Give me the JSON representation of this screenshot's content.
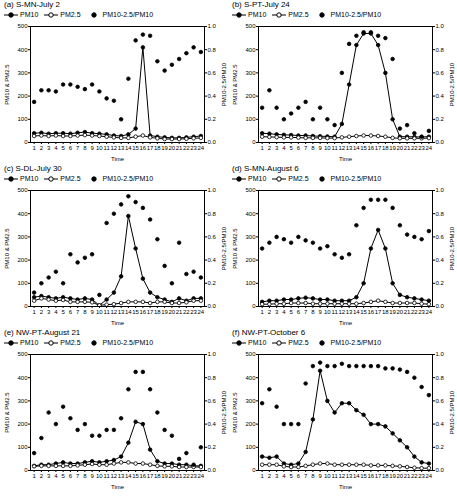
{
  "chart_data": [
    {
      "type": "line",
      "annotation": "(a)",
      "title": "S-MN-July 2",
      "xlabel": "Time",
      "ylabel": "PM10 & PM2.5",
      "y2label": "PM10-2.5/PM10",
      "x": [
        1,
        2,
        3,
        4,
        5,
        6,
        7,
        8,
        9,
        10,
        11,
        12,
        13,
        14,
        15,
        16,
        17,
        18,
        19,
        20,
        21,
        22,
        23,
        24
      ],
      "xlim": [
        0.5,
        24.5
      ],
      "xticks": [
        1,
        2,
        3,
        4,
        5,
        6,
        7,
        8,
        9,
        10,
        11,
        12,
        13,
        14,
        15,
        16,
        17,
        18,
        19,
        20,
        21,
        22,
        23,
        24
      ],
      "ylim": [
        0,
        500
      ],
      "yticks": [
        0,
        100,
        200,
        300,
        400,
        500
      ],
      "y2lim": [
        0,
        1
      ],
      "y2ticks": [
        {
          "value": 0,
          "label": "0.0"
        },
        {
          "value": 0.2,
          "label": "0.2"
        },
        {
          "value": 0.4,
          "label": "0.4"
        },
        {
          "value": 0.6,
          "label": "0.6"
        },
        {
          "value": 0.8,
          "label": "0.8"
        },
        {
          "value": 1,
          "label": "1.0"
        }
      ],
      "series": [
        {
          "name": "PM10",
          "type": "line",
          "marker": "filled",
          "color": "#000000",
          "values": [
            40,
            42,
            38,
            40,
            40,
            38,
            42,
            45,
            40,
            38,
            35,
            30,
            28,
            35,
            60,
            410,
            30,
            25,
            22,
            20,
            20,
            22,
            25,
            28
          ]
        },
        {
          "name": "PM2.5",
          "type": "line",
          "marker": "open",
          "color": "#000000",
          "values": [
            28,
            30,
            28,
            30,
            28,
            28,
            30,
            32,
            30,
            28,
            25,
            22,
            20,
            20,
            25,
            30,
            22,
            18,
            15,
            15,
            15,
            16,
            18,
            20
          ]
        },
        {
          "name": "PM10-2.5/PM10",
          "type": "scatter",
          "marker": "filled",
          "color": "#000000",
          "axis": "y2",
          "values": [
            0.35,
            0.45,
            0.45,
            0.44,
            0.5,
            0.5,
            0.48,
            0.46,
            0.5,
            0.44,
            0.38,
            0.36,
            0.2,
            0.55,
            0.88,
            0.93,
            0.92,
            0.7,
            0.62,
            0.67,
            0.72,
            0.77,
            0.82,
            0.78
          ]
        }
      ]
    },
    {
      "type": "line",
      "annotation": "(b)",
      "title": "S-PT-July 24",
      "xlabel": "Time",
      "ylabel": "PM10 & PM2.5",
      "y2label": "PM10-2.5/PM10",
      "x": [
        1,
        2,
        3,
        4,
        5,
        6,
        7,
        8,
        9,
        10,
        11,
        12,
        13,
        14,
        15,
        16,
        17,
        18,
        19,
        20,
        21,
        22,
        23,
        24
      ],
      "xlim": [
        0.5,
        24.5
      ],
      "xticks": [
        1,
        2,
        3,
        4,
        5,
        6,
        7,
        8,
        9,
        10,
        11,
        12,
        13,
        14,
        15,
        16,
        17,
        18,
        19,
        20,
        21,
        22,
        23,
        24
      ],
      "ylim": [
        0,
        500
      ],
      "yticks": [
        0,
        100,
        200,
        300,
        400,
        500
      ],
      "y2lim": [
        0,
        1
      ],
      "y2ticks": [
        {
          "value": 0,
          "label": "0.0"
        },
        {
          "value": 0.2,
          "label": "0.2"
        },
        {
          "value": 0.4,
          "label": "0.4"
        },
        {
          "value": 0.6,
          "label": "0.6"
        },
        {
          "value": 0.8,
          "label": "0.8"
        },
        {
          "value": 1,
          "label": "1.0"
        }
      ],
      "series": [
        {
          "name": "PM10",
          "type": "line",
          "marker": "filled",
          "color": "#000000",
          "values": [
            40,
            38,
            35,
            33,
            32,
            30,
            30,
            28,
            27,
            26,
            25,
            80,
            250,
            420,
            470,
            470,
            420,
            300,
            100,
            25,
            25,
            24,
            24,
            25
          ]
        },
        {
          "name": "PM2.5",
          "type": "line",
          "marker": "open",
          "color": "#000000",
          "values": [
            25,
            24,
            23,
            22,
            22,
            21,
            20,
            20,
            20,
            19,
            19,
            22,
            25,
            28,
            30,
            30,
            28,
            25,
            20,
            18,
            18,
            18,
            18,
            19
          ]
        },
        {
          "name": "PM10-2.5/PM10",
          "type": "scatter",
          "marker": "filled",
          "color": "#000000",
          "axis": "y2",
          "values": [
            0.3,
            0.45,
            0.3,
            0.2,
            0.25,
            0.3,
            0.35,
            0.2,
            0.3,
            0.2,
            0.15,
            0.6,
            0.85,
            0.92,
            0.95,
            0.95,
            0.92,
            0.9,
            0.72,
            0.12,
            0.15,
            0.08,
            0.05,
            0.1
          ]
        }
      ]
    },
    {
      "type": "line",
      "annotation": "(c)",
      "title": "S-DL-July 30",
      "xlabel": "Time",
      "ylabel": "PM10 & PM2.5",
      "y2label": "PM10-2.5/PM10",
      "x": [
        1,
        2,
        3,
        4,
        5,
        6,
        7,
        8,
        9,
        10,
        11,
        12,
        13,
        14,
        15,
        16,
        17,
        18,
        19,
        20,
        21,
        22,
        23,
        24
      ],
      "xlim": [
        0.5,
        24.5
      ],
      "xticks": [
        1,
        2,
        3,
        4,
        5,
        6,
        7,
        8,
        9,
        10,
        11,
        12,
        13,
        14,
        15,
        16,
        17,
        18,
        19,
        20,
        21,
        22,
        23,
        24
      ],
      "ylim": [
        0,
        500
      ],
      "yticks": [
        0,
        100,
        200,
        300,
        400,
        500
      ],
      "y2lim": [
        0,
        1
      ],
      "y2ticks": [
        {
          "value": 0,
          "label": "0.0"
        },
        {
          "value": 0.2,
          "label": "0.2"
        },
        {
          "value": 0.4,
          "label": "0.4"
        },
        {
          "value": 0.6,
          "label": "0.6"
        },
        {
          "value": 0.8,
          "label": "0.8"
        },
        {
          "value": 1,
          "label": "1.0"
        }
      ],
      "series": [
        {
          "name": "PM10",
          "type": "line",
          "marker": "filled",
          "color": "#000000",
          "values": [
            40,
            45,
            40,
            35,
            40,
            35,
            30,
            35,
            30,
            5,
            30,
            60,
            130,
            390,
            250,
            120,
            60,
            40,
            30,
            20,
            35,
            25,
            35,
            35
          ]
        },
        {
          "name": "PM2.5",
          "type": "line",
          "marker": "open",
          "color": "#000000",
          "values": [
            25,
            35,
            30,
            25,
            28,
            20,
            20,
            20,
            18,
            5,
            8,
            10,
            15,
            20,
            20,
            20,
            15,
            20,
            20,
            15,
            15,
            18,
            25,
            25
          ]
        },
        {
          "name": "PM10-2.5/PM10",
          "type": "scatter",
          "marker": "filled",
          "color": "#000000",
          "axis": "y2",
          "values": [
            0.12,
            0.2,
            0.25,
            0.3,
            0.2,
            0.45,
            0.38,
            0.42,
            0.45,
            0.1,
            0.72,
            0.8,
            0.88,
            0.95,
            0.9,
            0.85,
            0.75,
            0.58,
            0.35,
            0.2,
            0.55,
            0.28,
            0.3,
            0.25
          ]
        }
      ]
    },
    {
      "type": "line",
      "annotation": "(d)",
      "title": "S-MN-August 6",
      "xlabel": "Time",
      "ylabel": "PM10 & PM2.5",
      "y2label": "PM10-2.5/PM10",
      "x": [
        1,
        2,
        3,
        4,
        5,
        6,
        7,
        8,
        9,
        10,
        11,
        12,
        13,
        14,
        15,
        16,
        17,
        18,
        19,
        20,
        21,
        22,
        23,
        24
      ],
      "xlim": [
        0.5,
        24.5
      ],
      "xticks": [
        1,
        2,
        3,
        4,
        5,
        6,
        7,
        8,
        9,
        10,
        11,
        12,
        13,
        14,
        15,
        16,
        17,
        18,
        19,
        20,
        21,
        22,
        23,
        24
      ],
      "ylim": [
        0,
        500
      ],
      "yticks": [
        0,
        100,
        200,
        300,
        400,
        500
      ],
      "y2lim": [
        0,
        1
      ],
      "y2ticks": [
        {
          "value": 0,
          "label": "0.0"
        },
        {
          "value": 0.2,
          "label": "0.2"
        },
        {
          "value": 0.4,
          "label": "0.4"
        },
        {
          "value": 0.6,
          "label": "0.6"
        },
        {
          "value": 0.8,
          "label": "0.8"
        },
        {
          "value": 1,
          "label": "1.0"
        }
      ],
      "series": [
        {
          "name": "PM10",
          "type": "line",
          "marker": "filled",
          "color": "#000000",
          "values": [
            20,
            25,
            25,
            30,
            30,
            35,
            38,
            35,
            30,
            30,
            25,
            25,
            25,
            40,
            100,
            250,
            330,
            250,
            100,
            50,
            40,
            35,
            30,
            25
          ]
        },
        {
          "name": "PM2.5",
          "type": "line",
          "marker": "open",
          "color": "#000000",
          "values": [
            10,
            10,
            12,
            12,
            15,
            15,
            15,
            12,
            12,
            12,
            12,
            12,
            12,
            12,
            15,
            20,
            25,
            20,
            15,
            15,
            15,
            15,
            12,
            10
          ]
        },
        {
          "name": "PM10-2.5/PM10",
          "type": "scatter",
          "marker": "filled",
          "color": "#000000",
          "axis": "y2",
          "values": [
            0.5,
            0.55,
            0.6,
            0.58,
            0.55,
            0.6,
            0.57,
            0.55,
            0.5,
            0.52,
            0.45,
            0.42,
            0.45,
            0.7,
            0.85,
            0.92,
            0.92,
            0.92,
            0.85,
            0.7,
            0.62,
            0.6,
            0.58,
            0.65
          ]
        }
      ]
    },
    {
      "type": "line",
      "annotation": "(e)",
      "title": "NW-PT-August 21",
      "xlabel": "Time",
      "ylabel": "PM10 & PM2.5",
      "y2label": "PM10-2.5/PM10",
      "x": [
        1,
        2,
        3,
        4,
        5,
        6,
        7,
        8,
        9,
        10,
        11,
        12,
        13,
        14,
        15,
        16,
        17,
        18,
        19,
        20,
        21,
        22,
        23,
        24
      ],
      "xlim": [
        0.5,
        24.5
      ],
      "xticks": [
        1,
        2,
        3,
        4,
        5,
        6,
        7,
        8,
        9,
        10,
        11,
        12,
        13,
        14,
        15,
        16,
        17,
        18,
        19,
        20,
        21,
        22,
        23,
        24
      ],
      "ylim": [
        0,
        500
      ],
      "yticks": [
        0,
        100,
        200,
        300,
        400,
        500
      ],
      "y2lim": [
        0,
        1
      ],
      "y2ticks": [
        {
          "value": 0,
          "label": "0.0"
        },
        {
          "value": 0.2,
          "label": "0.2"
        },
        {
          "value": 0.4,
          "label": "0.4"
        },
        {
          "value": 0.6,
          "label": "0.6"
        },
        {
          "value": 0.8,
          "label": "0.8"
        },
        {
          "value": 1,
          "label": "1.0"
        }
      ],
      "series": [
        {
          "name": "PM10",
          "type": "line",
          "marker": "filled",
          "color": "#000000",
          "values": [
            20,
            25,
            25,
            30,
            35,
            30,
            30,
            35,
            40,
            35,
            40,
            45,
            60,
            120,
            210,
            200,
            90,
            40,
            30,
            30,
            25,
            25,
            20,
            20
          ]
        },
        {
          "name": "PM2.5",
          "type": "line",
          "marker": "open",
          "color": "#000000",
          "values": [
            18,
            20,
            20,
            20,
            20,
            20,
            22,
            25,
            28,
            25,
            25,
            30,
            35,
            35,
            30,
            30,
            25,
            20,
            18,
            18,
            15,
            15,
            15,
            15
          ]
        },
        {
          "name": "PM10-2.5/PM10",
          "type": "scatter",
          "marker": "filled",
          "color": "#000000",
          "axis": "y2",
          "values": [
            0.15,
            0.28,
            0.5,
            0.4,
            0.55,
            0.45,
            0.35,
            0.4,
            0.3,
            0.3,
            0.35,
            0.35,
            0.45,
            0.7,
            0.85,
            0.85,
            0.7,
            0.5,
            0.35,
            0.3,
            0.1,
            0.15,
            0.05,
            0.2
          ]
        }
      ]
    },
    {
      "type": "line",
      "annotation": "(f)",
      "title": "NW-PT-October 6",
      "xlabel": "Time",
      "ylabel": "PM10 & PM2.5",
      "y2label": "PM10-2.5/PM10",
      "x": [
        1,
        2,
        3,
        4,
        5,
        6,
        7,
        8,
        9,
        10,
        11,
        12,
        13,
        14,
        15,
        16,
        17,
        18,
        19,
        20,
        21,
        22,
        23,
        24
      ],
      "xlim": [
        0.5,
        24.5
      ],
      "xticks": [
        1,
        2,
        3,
        4,
        5,
        6,
        7,
        8,
        9,
        10,
        11,
        12,
        13,
        14,
        15,
        16,
        17,
        18,
        19,
        20,
        21,
        22,
        23,
        24
      ],
      "ylim": [
        0,
        500
      ],
      "yticks": [
        0,
        100,
        200,
        300,
        400,
        500
      ],
      "y2lim": [
        0,
        1
      ],
      "y2ticks": [
        {
          "value": 0,
          "label": "0.0"
        },
        {
          "value": 0.2,
          "label": "0.2"
        },
        {
          "value": 0.4,
          "label": "0.4"
        },
        {
          "value": 0.6,
          "label": "0.6"
        },
        {
          "value": 0.8,
          "label": "0.8"
        },
        {
          "value": 1,
          "label": "1.0"
        }
      ],
      "series": [
        {
          "name": "PM10",
          "type": "line",
          "marker": "filled",
          "color": "#000000",
          "values": [
            60,
            55,
            60,
            30,
            25,
            30,
            80,
            220,
            430,
            300,
            250,
            290,
            290,
            260,
            240,
            200,
            200,
            190,
            160,
            130,
            100,
            60,
            35,
            30
          ]
        },
        {
          "name": "PM2.5",
          "type": "line",
          "marker": "open",
          "color": "#000000",
          "values": [
            25,
            25,
            25,
            18,
            15,
            15,
            20,
            25,
            30,
            30,
            25,
            25,
            25,
            25,
            25,
            22,
            22,
            22,
            20,
            18,
            15,
            12,
            10,
            10
          ]
        },
        {
          "name": "PM10-2.5/PM10",
          "type": "scatter",
          "marker": "filled",
          "color": "#000000",
          "axis": "y2",
          "values": [
            0.58,
            0.7,
            0.55,
            0.4,
            0.4,
            0.4,
            0.75,
            0.9,
            0.93,
            0.9,
            0.9,
            0.92,
            0.9,
            0.9,
            0.9,
            0.9,
            0.9,
            0.88,
            0.88,
            0.87,
            0.85,
            0.8,
            0.72,
            0.65
          ]
        }
      ]
    }
  ]
}
